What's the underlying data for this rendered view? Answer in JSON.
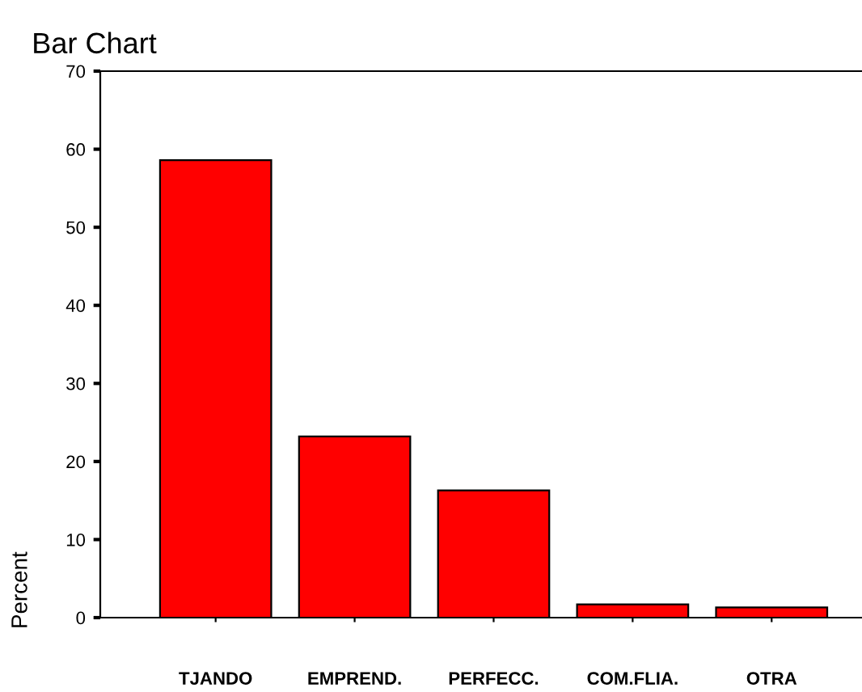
{
  "chart_data": {
    "type": "bar",
    "title": "Bar Chart",
    "ylabel": "Percent",
    "categories": [
      "TJANDO",
      "EMPREND.",
      "PERFECC.",
      "COM.FLIA.",
      "OTRA"
    ],
    "values": [
      58.6,
      23.2,
      16.3,
      1.7,
      1.3
    ],
    "color": "#ff0000",
    "ylim": [
      0,
      70
    ],
    "yticks": [
      0,
      10,
      20,
      30,
      40,
      50,
      60,
      70
    ],
    "grid": false,
    "legend": false
  }
}
